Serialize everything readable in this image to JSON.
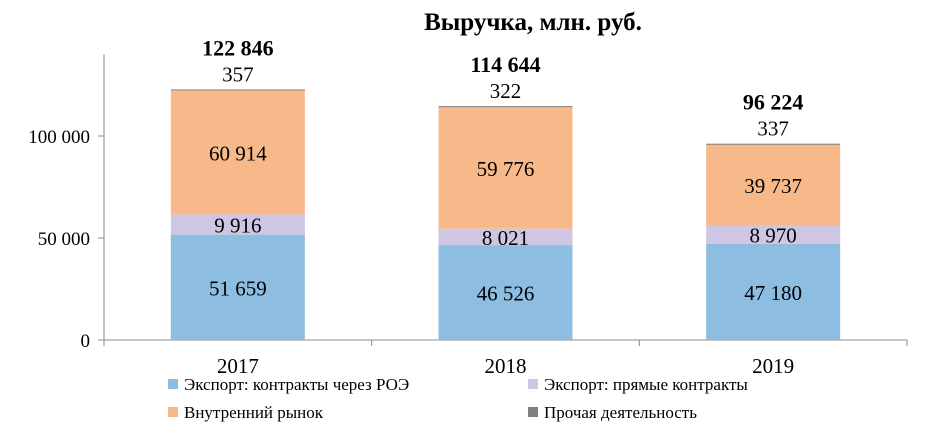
{
  "chart_data": {
    "type": "bar",
    "stacked": true,
    "title": "Выручка, млн. руб.",
    "categories": [
      "2017",
      "2018",
      "2019"
    ],
    "series": [
      {
        "name": "Экспорт: контракты через РОЭ",
        "values": [
          51659,
          46526,
          47180
        ],
        "labels": [
          "51 659",
          "46 526",
          "47 180"
        ],
        "color": "#8dbde0"
      },
      {
        "name": "Экспорт: прямые контракты",
        "values": [
          9916,
          8021,
          8970
        ],
        "labels": [
          "9 916",
          "8 021",
          "8 970"
        ],
        "color": "#cfc6e3"
      },
      {
        "name": "Внутренний рынок",
        "values": [
          60914,
          59776,
          39737
        ],
        "labels": [
          "60 914",
          "59 776",
          "39 737"
        ],
        "color": "#f7b98a"
      },
      {
        "name": "Прочая деятельность",
        "values": [
          357,
          322,
          337
        ],
        "labels": [
          "357",
          "322",
          "337"
        ],
        "color": "#7f7f7f"
      }
    ],
    "totals": [
      122846,
      114644,
      96224
    ],
    "total_labels": [
      "122 846",
      "114 644",
      "96 224"
    ],
    "ylim": [
      0,
      140000
    ],
    "yticks": [
      0,
      50000,
      100000
    ],
    "ytick_labels": [
      "0",
      "50 000",
      "100 000"
    ],
    "grid": false,
    "legend_position": "bottom"
  }
}
